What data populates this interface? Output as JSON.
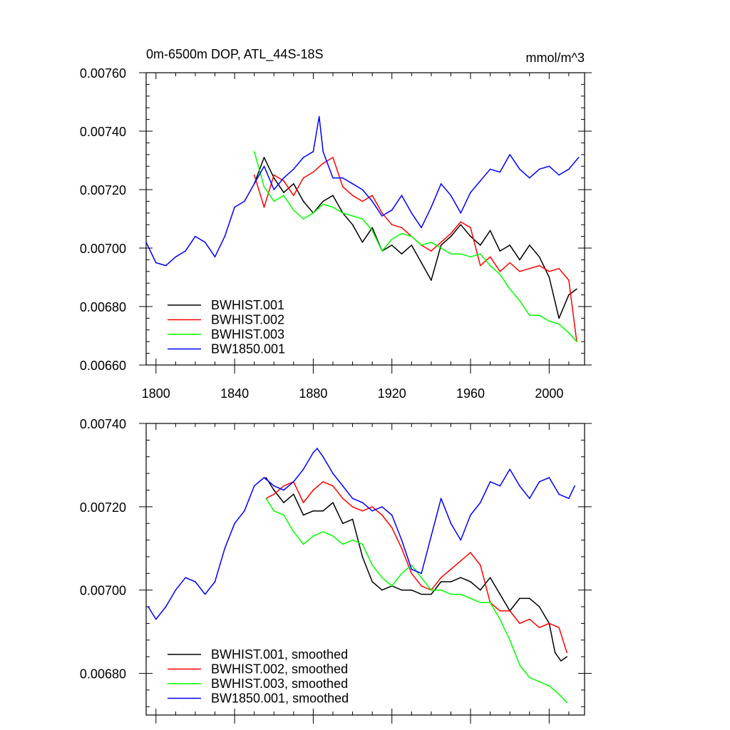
{
  "title_left": "0m-6500m DOP, ATL_44S-18S",
  "title_right": "mmol/m^3",
  "colors": {
    "BWHIST.001": "#000000",
    "BWHIST.002": "#ff0000",
    "BWHIST.003": "#00ff00",
    "BW1850.001": "#0000ff"
  },
  "chart_data": [
    {
      "type": "line",
      "name": "annual",
      "xlim": [
        1795,
        2018
      ],
      "ylim": [
        0.0066,
        0.0076
      ],
      "xticks": [
        1800,
        1840,
        1880,
        1920,
        1960,
        2000
      ],
      "xtick_labels": [
        "1800",
        "1840",
        "1880",
        "1920",
        "1960",
        "2000"
      ],
      "yticks": [
        0.0066,
        0.0068,
        0.007,
        0.0072,
        0.0074,
        0.0076
      ],
      "ytick_labels": [
        "0.00660",
        "0.00680",
        "0.00700",
        "0.00720",
        "0.00740",
        "0.00760"
      ],
      "legend_position": "bottom-left",
      "legend": [
        "BWHIST.001",
        "BWHIST.002",
        "BWHIST.003",
        "BW1850.001"
      ],
      "series": [
        {
          "name": "BWHIST.001",
          "key": "BWHIST.001",
          "x": [
            1850,
            1855,
            1860,
            1865,
            1870,
            1875,
            1880,
            1885,
            1890,
            1895,
            1900,
            1905,
            1910,
            1915,
            1920,
            1925,
            1930,
            1935,
            1940,
            1945,
            1950,
            1955,
            1960,
            1965,
            1970,
            1975,
            1980,
            1985,
            1990,
            1995,
            2000,
            2005,
            2010,
            2014
          ],
          "y": [
            0.00722,
            0.00731,
            0.00724,
            0.00719,
            0.00722,
            0.00716,
            0.00712,
            0.00716,
            0.00718,
            0.00712,
            0.00708,
            0.00702,
            0.00707,
            0.00699,
            0.00701,
            0.00698,
            0.00701,
            0.00695,
            0.00689,
            0.00701,
            0.00704,
            0.00708,
            0.00704,
            0.00701,
            0.00706,
            0.00699,
            0.00701,
            0.00696,
            0.00701,
            0.00697,
            0.0069,
            0.00676,
            0.00684,
            0.00686
          ]
        },
        {
          "name": "BWHIST.002",
          "key": "BWHIST.002",
          "x": [
            1850,
            1855,
            1860,
            1865,
            1870,
            1875,
            1880,
            1885,
            1890,
            1895,
            1900,
            1905,
            1910,
            1915,
            1920,
            1925,
            1930,
            1935,
            1940,
            1945,
            1950,
            1955,
            1960,
            1965,
            1970,
            1975,
            1980,
            1985,
            1990,
            1995,
            2000,
            2005,
            2010,
            2014
          ],
          "y": [
            0.00725,
            0.00714,
            0.00725,
            0.00723,
            0.00718,
            0.00724,
            0.00726,
            0.00729,
            0.00731,
            0.00721,
            0.00718,
            0.00716,
            0.00718,
            0.00712,
            0.00708,
            0.00707,
            0.00704,
            0.00701,
            0.00699,
            0.00702,
            0.00705,
            0.00709,
            0.00707,
            0.00694,
            0.00697,
            0.00692,
            0.00695,
            0.00692,
            0.00693,
            0.00694,
            0.00692,
            0.00693,
            0.00689,
            0.00668
          ]
        },
        {
          "name": "BWHIST.003",
          "key": "BWHIST.003",
          "x": [
            1850,
            1855,
            1860,
            1865,
            1870,
            1875,
            1880,
            1885,
            1890,
            1895,
            1900,
            1905,
            1910,
            1915,
            1920,
            1925,
            1930,
            1935,
            1940,
            1945,
            1950,
            1955,
            1960,
            1965,
            1970,
            1975,
            1980,
            1985,
            1990,
            1995,
            2000,
            2005,
            2010,
            2014
          ],
          "y": [
            0.00733,
            0.00721,
            0.00716,
            0.00718,
            0.00713,
            0.0071,
            0.00712,
            0.00715,
            0.00714,
            0.00712,
            0.00711,
            0.0071,
            0.00706,
            0.00699,
            0.00703,
            0.00705,
            0.00704,
            0.00701,
            0.00702,
            0.007,
            0.00698,
            0.00698,
            0.00697,
            0.00698,
            0.00694,
            0.00691,
            0.00686,
            0.00682,
            0.00677,
            0.00677,
            0.00675,
            0.00674,
            0.00671,
            0.00668
          ]
        },
        {
          "name": "BW1850.001",
          "key": "BW1850.001",
          "x": [
            1795,
            1800,
            1805,
            1810,
            1815,
            1820,
            1825,
            1830,
            1835,
            1840,
            1845,
            1850,
            1855,
            1860,
            1865,
            1870,
            1875,
            1880,
            1883,
            1885,
            1890,
            1895,
            1900,
            1905,
            1910,
            1915,
            1920,
            1925,
            1930,
            1935,
            1940,
            1945,
            1950,
            1955,
            1960,
            1965,
            1970,
            1975,
            1980,
            1985,
            1990,
            1995,
            2000,
            2005,
            2010,
            2015
          ],
          "y": [
            0.00702,
            0.00695,
            0.00694,
            0.00697,
            0.00699,
            0.00704,
            0.00702,
            0.00697,
            0.00704,
            0.00714,
            0.00716,
            0.00722,
            0.00728,
            0.0072,
            0.00724,
            0.00727,
            0.00731,
            0.00733,
            0.00745,
            0.00733,
            0.00724,
            0.00724,
            0.00722,
            0.0072,
            0.00716,
            0.00711,
            0.00713,
            0.00718,
            0.00712,
            0.00707,
            0.00714,
            0.00722,
            0.00718,
            0.00712,
            0.00719,
            0.00723,
            0.00727,
            0.00726,
            0.00732,
            0.00727,
            0.00724,
            0.00727,
            0.00728,
            0.00725,
            0.00727,
            0.00731
          ]
        }
      ]
    },
    {
      "type": "line",
      "name": "smoothed",
      "xlim": [
        1795,
        2018
      ],
      "ylim": [
        0.0067,
        0.0074
      ],
      "xticks": [
        1800,
        1840,
        1880,
        1920,
        1960,
        2000
      ],
      "yticks": [
        0.0068,
        0.007,
        0.0072,
        0.0074
      ],
      "ytick_labels": [
        "0.00680",
        "0.00700",
        "0.00720",
        "0.00740"
      ],
      "legend_position": "bottom-left",
      "legend": [
        "BWHIST.001, smoothed",
        "BWHIST.002, smoothed",
        "BWHIST.003, smoothed",
        "BW1850.001, smoothed"
      ],
      "series": [
        {
          "name": "BWHIST.001, smoothed",
          "key": "BWHIST.001",
          "x": [
            1856,
            1860,
            1865,
            1870,
            1875,
            1880,
            1885,
            1890,
            1895,
            1900,
            1905,
            1910,
            1915,
            1920,
            1925,
            1930,
            1935,
            1940,
            1945,
            1950,
            1955,
            1960,
            1965,
            1970,
            1975,
            1980,
            1985,
            1990,
            1995,
            2000,
            2003,
            2006,
            2009
          ],
          "y": [
            0.00727,
            0.00724,
            0.00721,
            0.00723,
            0.00718,
            0.00719,
            0.00719,
            0.00721,
            0.00716,
            0.00717,
            0.00708,
            0.00702,
            0.007,
            0.00701,
            0.007,
            0.007,
            0.00699,
            0.00699,
            0.00702,
            0.00702,
            0.00703,
            0.00702,
            0.007,
            0.00703,
            0.00699,
            0.00695,
            0.00698,
            0.00698,
            0.00696,
            0.00692,
            0.00685,
            0.00683,
            0.00684
          ]
        },
        {
          "name": "BWHIST.002, smoothed",
          "key": "BWHIST.002",
          "x": [
            1856,
            1860,
            1865,
            1870,
            1875,
            1880,
            1885,
            1890,
            1895,
            1900,
            1905,
            1910,
            1915,
            1920,
            1925,
            1930,
            1935,
            1940,
            1945,
            1950,
            1955,
            1960,
            1965,
            1970,
            1975,
            1980,
            1985,
            1990,
            1995,
            2000,
            2005,
            2009
          ],
          "y": [
            0.00722,
            0.00723,
            0.00725,
            0.00726,
            0.00721,
            0.00724,
            0.00726,
            0.00725,
            0.00722,
            0.0072,
            0.00719,
            0.0072,
            0.00718,
            0.00715,
            0.0071,
            0.00704,
            0.00701,
            0.007,
            0.00703,
            0.00705,
            0.00707,
            0.00709,
            0.00706,
            0.00697,
            0.00695,
            0.00695,
            0.00692,
            0.00693,
            0.00691,
            0.00692,
            0.00691,
            0.00685
          ]
        },
        {
          "name": "BWHIST.003, smoothed",
          "key": "BWHIST.003",
          "x": [
            1856,
            1860,
            1865,
            1870,
            1875,
            1880,
            1885,
            1890,
            1895,
            1900,
            1905,
            1910,
            1915,
            1920,
            1925,
            1930,
            1935,
            1940,
            1945,
            1950,
            1955,
            1960,
            1965,
            1970,
            1975,
            1980,
            1985,
            1990,
            1995,
            2000,
            2005,
            2009
          ],
          "y": [
            0.00722,
            0.00719,
            0.00718,
            0.00714,
            0.00711,
            0.00713,
            0.00714,
            0.00713,
            0.00711,
            0.00712,
            0.00711,
            0.00706,
            0.00703,
            0.00701,
            0.00704,
            0.00706,
            0.00703,
            0.007,
            0.007,
            0.00699,
            0.00699,
            0.00698,
            0.00697,
            0.00697,
            0.00693,
            0.00688,
            0.00682,
            0.00679,
            0.00678,
            0.00677,
            0.00675,
            0.00673
          ]
        },
        {
          "name": "BW1850.001, smoothed",
          "key": "BW1850.001",
          "x": [
            1796,
            1800,
            1805,
            1810,
            1815,
            1820,
            1825,
            1830,
            1835,
            1840,
            1845,
            1850,
            1855,
            1860,
            1865,
            1870,
            1875,
            1880,
            1882,
            1885,
            1890,
            1895,
            1900,
            1905,
            1910,
            1915,
            1920,
            1925,
            1930,
            1935,
            1940,
            1945,
            1950,
            1955,
            1960,
            1965,
            1970,
            1975,
            1980,
            1985,
            1990,
            1995,
            2000,
            2005,
            2010,
            2013
          ],
          "y": [
            0.00696,
            0.00693,
            0.00696,
            0.007,
            0.00703,
            0.00702,
            0.00699,
            0.00702,
            0.0071,
            0.00716,
            0.00719,
            0.00725,
            0.00727,
            0.00725,
            0.00724,
            0.00726,
            0.00729,
            0.00733,
            0.00734,
            0.00732,
            0.00728,
            0.00725,
            0.00722,
            0.00721,
            0.00719,
            0.0072,
            0.00718,
            0.00712,
            0.00705,
            0.00704,
            0.00713,
            0.00722,
            0.00716,
            0.00712,
            0.00718,
            0.00721,
            0.00726,
            0.00725,
            0.00729,
            0.00725,
            0.00722,
            0.00726,
            0.00727,
            0.00723,
            0.00722,
            0.00725
          ]
        }
      ]
    }
  ]
}
